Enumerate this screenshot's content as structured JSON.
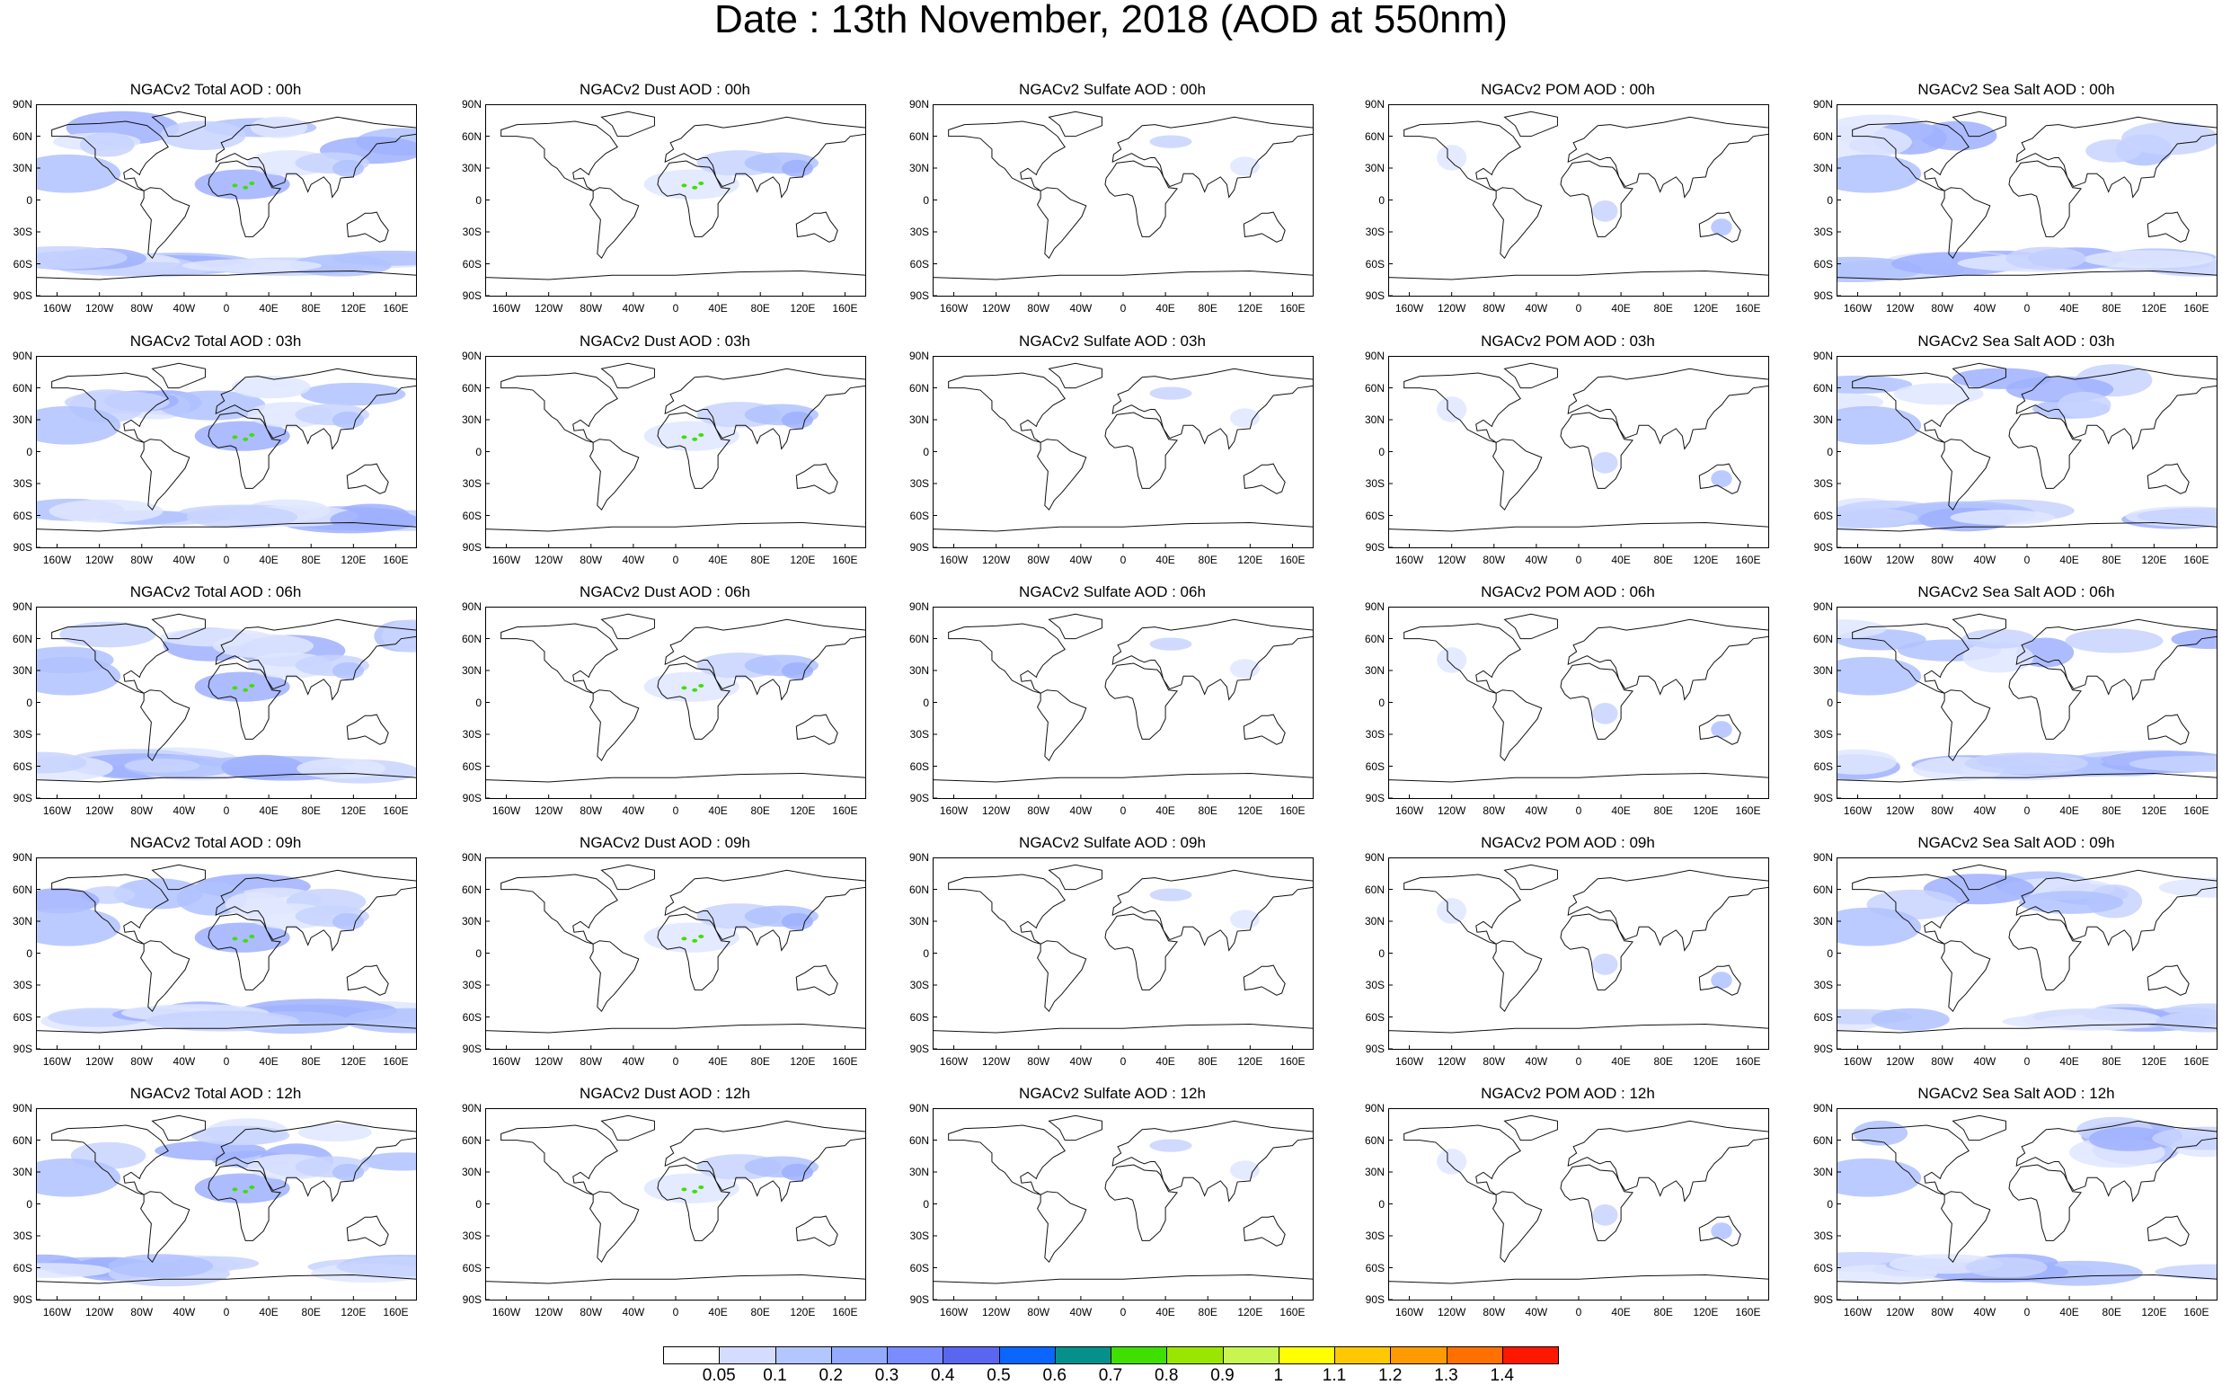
{
  "title": "Date : 13th November, 2018 (AOD at 550nm)",
  "lat_ticks": [
    "90N",
    "60N",
    "30N",
    "0",
    "30S",
    "60S",
    "90S"
  ],
  "lon_ticks": [
    "160W",
    "120W",
    "80W",
    "40W",
    "0",
    "40E",
    "80E",
    "120E",
    "160E"
  ],
  "panels": [
    [
      "NGACv2 Total AOD : 00h",
      "NGACv2 Dust AOD : 00h",
      "NGACv2 Sulfate AOD : 00h",
      "NGACv2 POM AOD : 00h",
      "NGACv2 Sea Salt AOD : 00h"
    ],
    [
      "NGACv2 Total AOD : 03h",
      "NGACv2 Dust AOD : 03h",
      "NGACv2 Sulfate AOD : 03h",
      "NGACv2 POM AOD : 03h",
      "NGACv2 Sea Salt AOD : 03h"
    ],
    [
      "NGACv2 Total AOD : 06h",
      "NGACv2 Dust AOD : 06h",
      "NGACv2 Sulfate AOD : 06h",
      "NGACv2 POM AOD : 06h",
      "NGACv2 Sea Salt AOD : 06h"
    ],
    [
      "NGACv2 Total AOD : 09h",
      "NGACv2 Dust AOD : 09h",
      "NGACv2 Sulfate AOD : 09h",
      "NGACv2 POM AOD : 09h",
      "NGACv2 Sea Salt  AOD : 09h"
    ],
    [
      "NGACv2 Total AOD  : 12h",
      "NGACv2 Dust AOD : 12h",
      "NGACv2 Sulfate AOD : 12h",
      "NGACv2 POM  AOD : 12h",
      "NGACv2 Sea Salt AOD : 12h"
    ]
  ],
  "colorbar": {
    "labels": [
      "0.05",
      "0.1",
      "0.2",
      "0.3",
      "0.4",
      "0.5",
      "0.6",
      "0.7",
      "0.8",
      "0.9",
      "1",
      "1.1",
      "1.2",
      "1.3",
      "1.4"
    ],
    "colors": [
      "#ffffff",
      "#d4dcff",
      "#b4c6ff",
      "#93aaff",
      "#7a8cff",
      "#5a66f0",
      "#0a66ff",
      "#05908c",
      "#3fdf00",
      "#9be600",
      "#c8f550",
      "#ffff00",
      "#ffc800",
      "#ff9a00",
      "#ff7000",
      "#ff1800"
    ]
  }
}
